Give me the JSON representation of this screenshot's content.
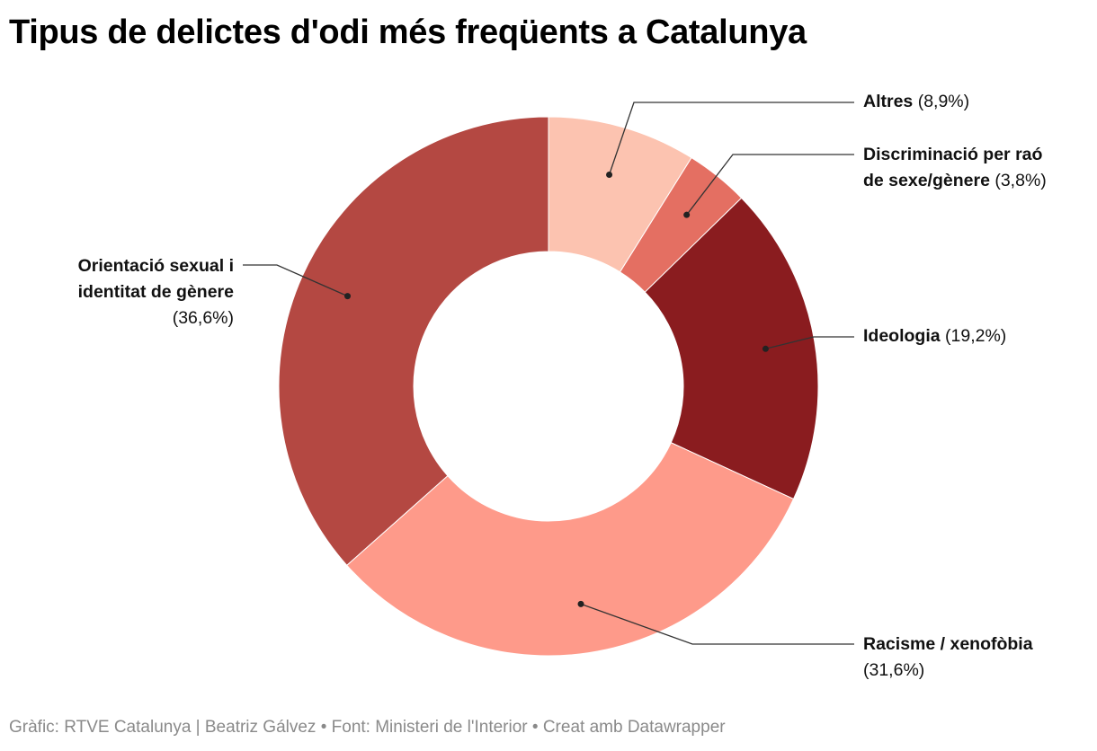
{
  "title": "Tipus de delictes d'odi més freqüents a Catalunya",
  "footer": "Gràfic: RTVE Catalunya | Beatriz Gálvez • Font: Ministeri de l'Interior • Creat amb Datawrapper",
  "chart_data": {
    "type": "pie",
    "variant": "donut",
    "title": "Tipus de delictes d'odi més freqüents a Catalunya",
    "slices": [
      {
        "key": "altres",
        "label": "Altres",
        "label_line2": "",
        "label_line3": "",
        "pct_text": "(8,9%)",
        "value": 8.9,
        "color": "#fcc3b0"
      },
      {
        "key": "discriminacio",
        "label": "Discriminació per raó",
        "label_line2": "de sexe/gènere",
        "label_line3": "",
        "pct_text": "(3,8%)",
        "value": 3.8,
        "color": "#e46f62"
      },
      {
        "key": "ideologia",
        "label": "Ideologia",
        "label_line2": "",
        "label_line3": "",
        "pct_text": "(19,2%)",
        "value": 19.2,
        "color": "#8a1c1f"
      },
      {
        "key": "racisme",
        "label": "Racisme / xenofòbia",
        "label_line2": "",
        "label_line3": "",
        "pct_text": "(31,6%)",
        "value": 31.6,
        "color": "#fe9a8a"
      },
      {
        "key": "orientacio",
        "label": "Orientació sexual i",
        "label_line2": "identitat de gènere",
        "label_line3": "",
        "pct_text": "(36,6%)",
        "value": 36.6,
        "color": "#b44842"
      }
    ]
  }
}
